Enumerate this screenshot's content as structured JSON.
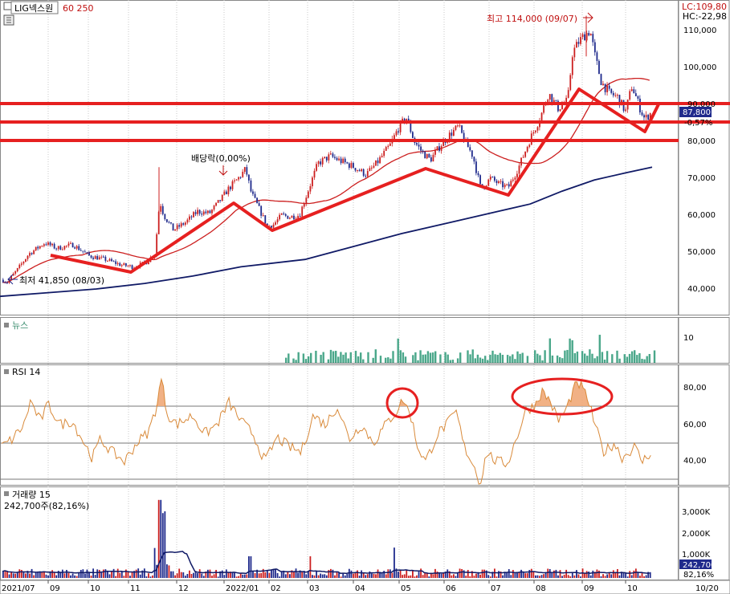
{
  "header": {
    "symbol": "LIG넥스원",
    "ma_periods": "60  250",
    "lc": "LC:109,80",
    "hc": "HC:-22,98"
  },
  "annotations": {
    "high": "최고 114,000 (09/07)",
    "low": "최저 41,850 (08/03)",
    "dividend": "배당락(0,00%)"
  },
  "price_panel": {
    "ticks": [
      "110,000",
      "100,000",
      "90,000",
      "80,000",
      "70,000",
      "60,000",
      "50,000",
      "40,000"
    ],
    "current_price": "87,800",
    "change": "-0,57%"
  },
  "news_panel": {
    "label": "뉴스",
    "ticks": [
      "10"
    ]
  },
  "rsi_panel": {
    "label": "RSI 14",
    "ticks": [
      "80,00",
      "60,00",
      "40,00"
    ]
  },
  "volume_panel": {
    "label": "거래량  15",
    "info": "242,700주(82,16%)",
    "ticks": [
      "3,000K",
      "2,000K",
      "1,000K"
    ],
    "current_volume": "242,700",
    "current_ratio": "82,16%"
  },
  "x_axis": {
    "labels": [
      "2021/07",
      "09",
      "10",
      "11",
      "12",
      "2022/01",
      "02",
      "03",
      "04",
      "05",
      "06",
      "07",
      "08",
      "09",
      "10",
      "10/20"
    ]
  },
  "colors": {
    "up": "#cc1f1f",
    "down": "#1f2a8c",
    "ma60": "#cc1f1f",
    "ma250": "#101a66",
    "rsi": "#d98a3a",
    "news": "#4aa78a",
    "highlight": "#e62020"
  },
  "chart_data": {
    "type": "candlestick",
    "price_ylim": [
      35000,
      115000
    ],
    "price_levels": [
      {
        "date": "2021/08/03",
        "close": 41850
      },
      {
        "date": "2021/08",
        "close": 52000
      },
      {
        "date": "2021/09",
        "close": 50500
      },
      {
        "date": "2021/10",
        "close": 47500
      },
      {
        "date": "2021/11",
        "close": 46000
      },
      {
        "date": "2021/11/22",
        "close": 64000
      },
      {
        "date": "2021/12",
        "close": 60000
      },
      {
        "date": "2022/01",
        "close": 68000
      },
      {
        "date": "2022/02",
        "close": 57000
      },
      {
        "date": "2022/03",
        "close": 76000
      },
      {
        "date": "2022/04",
        "close": 74000
      },
      {
        "date": "2022/05",
        "close": 85000
      },
      {
        "date": "2022/06",
        "close": 82000
      },
      {
        "date": "2022/07",
        "close": 68000
      },
      {
        "date": "2022/08",
        "close": 92000
      },
      {
        "date": "2022/09/07",
        "close": 114000
      },
      {
        "date": "2022/10",
        "close": 86000
      },
      {
        "date": "2022/10/20",
        "close": 87800
      }
    ],
    "horizontal_lines": [
      89000,
      84000,
      80000
    ],
    "rsi_ylim": [
      25,
      90
    ],
    "rsi_levels": [
      30,
      50,
      70
    ],
    "volume_ylim": [
      0,
      4000000
    ]
  }
}
